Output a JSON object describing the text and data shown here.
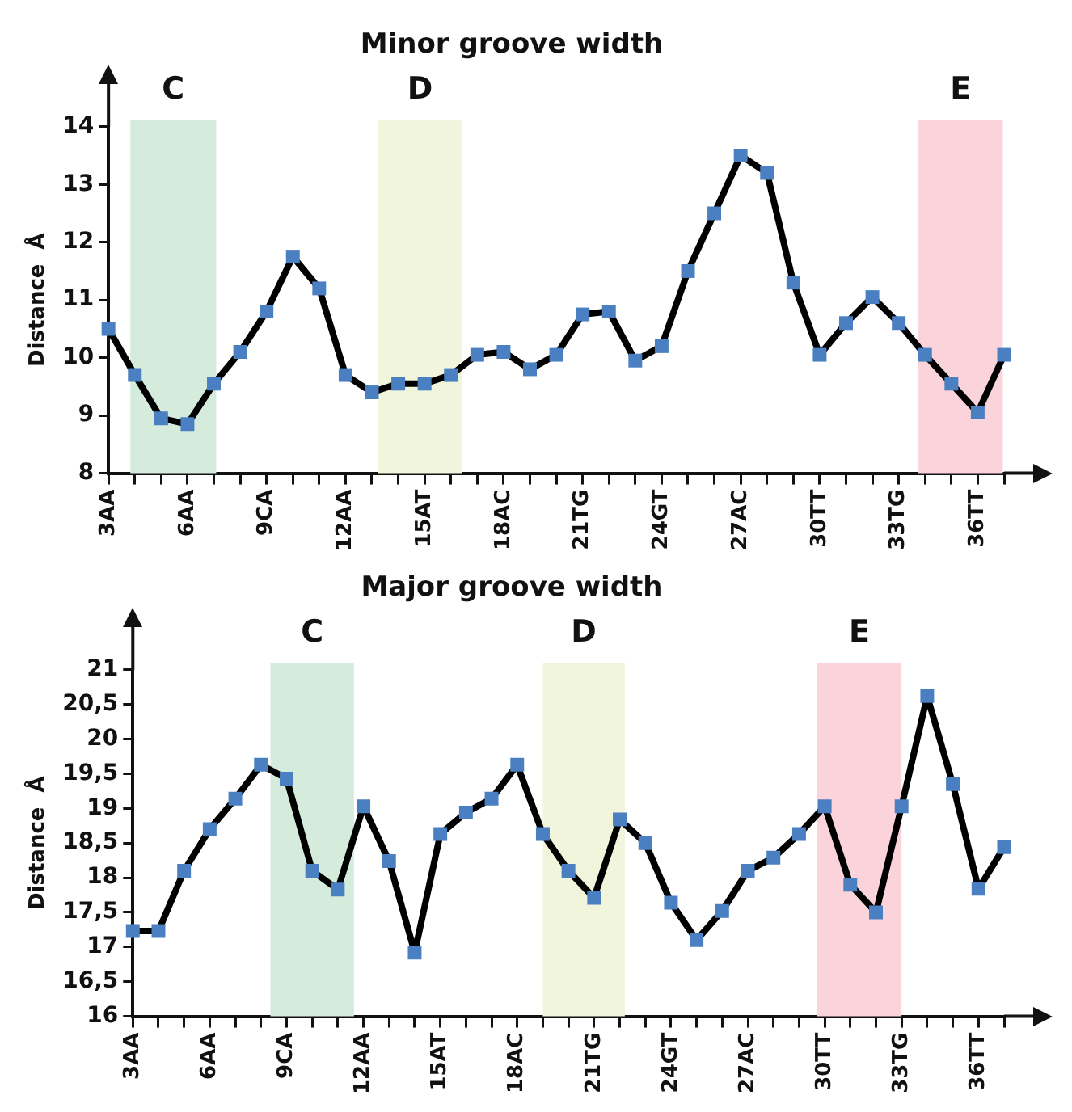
{
  "chart_data": [
    {
      "type": "line",
      "title": "Minor groove width",
      "ylabel": "Distance  Å",
      "categories": [
        "3AA",
        null,
        null,
        "6AA",
        null,
        null,
        "9CA",
        null,
        null,
        "12AA",
        null,
        null,
        "15AT",
        null,
        null,
        "18AC",
        null,
        null,
        "21TG",
        null,
        null,
        "24GT",
        null,
        null,
        "27AC",
        null,
        null,
        "30TT",
        null,
        null,
        "33TG",
        null,
        null,
        "36TT",
        null
      ],
      "series": [
        {
          "color": "#000000",
          "colors": [
            "#4a7fc1",
            "#4a7fc1",
            "#4a7fc1",
            "#4a7fc1",
            "#4a7fc1",
            "#4a7fc1",
            "#4a7fc1",
            "#4a7fc1",
            "#4a7fc1",
            "#4a7fc1",
            "#4a7fc1",
            "#4a7fc1",
            "#4a7fc1",
            "#4a7fc1",
            "#4a7fc1",
            "#4a7fc1",
            "#4a7fc1",
            "#4a7fc1",
            "#4a7fc1",
            "#4a7fc1",
            "#4a7fc1",
            "#4a7fc1",
            "#4a7fc1",
            "#4a7fc1",
            "#4a7fc1",
            "#4a7fc1",
            "#4a7fc1",
            "#4a7fc1",
            "#4a7fc1",
            "#4a7fc1",
            "#4a7fc1",
            "#4a7fc1",
            "#4a7fc1",
            "#4a7fc1",
            "#4a7fc1"
          ],
          "values": [
            10.5,
            9.7,
            8.95,
            8.85,
            9.55,
            10.1,
            10.8,
            11.75,
            11.2,
            9.7,
            9.4,
            9.55,
            9.55,
            9.7,
            10.05,
            10.1,
            9.8,
            10.05,
            10.75,
            10.8,
            9.95,
            10.2,
            11.5,
            12.5,
            13.5,
            13.2,
            11.3,
            10.05,
            10.6,
            11.05,
            10.6,
            10.05,
            9.55,
            9.05,
            10.05
          ]
        }
      ],
      "ylim": [
        8,
        14
      ],
      "yticks": [
        8,
        9,
        10,
        11,
        12,
        13,
        14
      ],
      "annotations": [
        "C",
        "D",
        "E"
      ],
      "marker": "square",
      "grid": false,
      "legend": false
    },
    {
      "type": "line",
      "title": "Major groove width",
      "ylabel": "Distance  Å",
      "categories": [
        "3AA",
        null,
        null,
        "6AA",
        null,
        null,
        "9CA",
        null,
        null,
        "12AA",
        null,
        null,
        "15AT",
        null,
        null,
        "18AC",
        null,
        null,
        "21TG",
        null,
        null,
        "24GT",
        null,
        null,
        "27AC",
        null,
        null,
        "30TT",
        null,
        null,
        "33TG",
        null,
        null,
        "36TT",
        null
      ],
      "series": [
        {
          "color": "#000000",
          "colors": [
            "#4a7fc1",
            "#4a7fc1",
            "#4a7fc1",
            "#4a7fc1",
            "#4a7fc1",
            "#4a7fc1",
            "#4a7fc1",
            "#4a7fc1",
            "#4a7fc1",
            "#4a7fc1",
            "#4a7fc1",
            "#4a7fc1",
            "#4a7fc1",
            "#4a7fc1",
            "#4a7fc1",
            "#4a7fc1",
            "#4a7fc1",
            "#4a7fc1",
            "#4a7fc1",
            "#4a7fc1",
            "#4a7fc1",
            "#4a7fc1",
            "#4a7fc1",
            "#4a7fc1",
            "#4a7fc1",
            "#4a7fc1",
            "#4a7fc1",
            "#4a7fc1",
            "#4a7fc1",
            "#4a7fc1",
            "#4a7fc1",
            "#4a7fc1",
            "#4a7fc1",
            "#4a7fc1",
            "#4a7fc1"
          ],
          "values": [
            17.23,
            17.23,
            18.1,
            18.7,
            19.14,
            19.63,
            19.43,
            18.1,
            17.83,
            19.03,
            18.24,
            16.92,
            18.63,
            18.94,
            19.14,
            19.63,
            18.63,
            18.1,
            17.71,
            18.84,
            18.5,
            17.64,
            17.1,
            17.52,
            18.1,
            18.29,
            18.63,
            19.03,
            17.9,
            17.5,
            19.03,
            20.62,
            19.35,
            17.84,
            18.44
          ]
        }
      ],
      "ylim": [
        16,
        21
      ],
      "yticks": [
        16,
        {
          "value": 16.5,
          "label": "16,5"
        },
        17,
        {
          "value": 17.5,
          "label": "17,5"
        },
        18,
        {
          "value": 18.5,
          "label": "18,5"
        },
        19,
        {
          "value": 19.5,
          "label": "19,5"
        },
        20,
        {
          "value": 20.5,
          "label": "20,5"
        },
        21
      ],
      "annotations": [
        "C",
        "D",
        "E"
      ],
      "marker": "square",
      "grid": false,
      "legend": false
    }
  ]
}
